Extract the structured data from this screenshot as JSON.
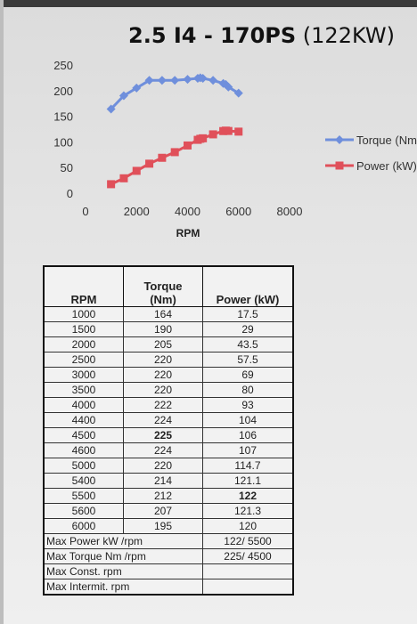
{
  "title_main": "2.5 I4 - 170PS",
  "title_sub": " (122KW)",
  "colors": {
    "torque": "#6f8fdc",
    "power": "#e0505a"
  },
  "chart_data": {
    "type": "line",
    "xlabel": "RPM",
    "ylabel": "",
    "xlim": [
      0,
      8000
    ],
    "ylim": [
      0,
      250
    ],
    "xticks": [
      0,
      2000,
      4000,
      6000,
      8000
    ],
    "yticks": [
      0,
      50,
      100,
      150,
      200,
      250
    ],
    "legend_position": "right",
    "x": [
      1000,
      1500,
      2000,
      2500,
      3000,
      3500,
      4000,
      4400,
      4500,
      4600,
      5000,
      5400,
      5500,
      5600,
      6000
    ],
    "series": [
      {
        "name": "Torque (Nm)",
        "values": [
          164,
          190,
          205,
          220,
          220,
          220,
          222,
          224,
          225,
          224,
          220,
          214,
          212,
          207,
          195
        ]
      },
      {
        "name": "Power (kW)",
        "values": [
          17.5,
          29,
          43.5,
          57.5,
          69,
          80,
          93,
          104,
          106,
          107,
          114.7,
          121.1,
          122,
          121.3,
          120
        ]
      }
    ]
  },
  "table": {
    "headers": {
      "rpm": "RPM",
      "torque": "Torque\n(Nm)",
      "power": "Power (kW)"
    },
    "rows": [
      [
        "1000",
        "164",
        "17.5"
      ],
      [
        "1500",
        "190",
        "29"
      ],
      [
        "2000",
        "205",
        "43.5"
      ],
      [
        "2500",
        "220",
        "57.5"
      ],
      [
        "3000",
        "220",
        "69"
      ],
      [
        "3500",
        "220",
        "80"
      ],
      [
        "4000",
        "222",
        "93"
      ],
      [
        "4400",
        "224",
        "104"
      ],
      [
        "4500",
        "225",
        "106"
      ],
      [
        "4600",
        "224",
        "107"
      ],
      [
        "5000",
        "220",
        "114.7"
      ],
      [
        "5400",
        "214",
        "121.1"
      ],
      [
        "5500",
        "212",
        "122"
      ],
      [
        "5600",
        "207",
        "121.3"
      ],
      [
        "6000",
        "195",
        "120"
      ]
    ],
    "footer": [
      {
        "label": "Max Power kW /rpm",
        "value": "122/ 5500"
      },
      {
        "label": "Max Torque Nm /rpm",
        "value": "225/ 4500"
      },
      {
        "label": "Max Const. rpm",
        "value": ""
      },
      {
        "label": "Max Intermit. rpm",
        "value": ""
      }
    ]
  }
}
